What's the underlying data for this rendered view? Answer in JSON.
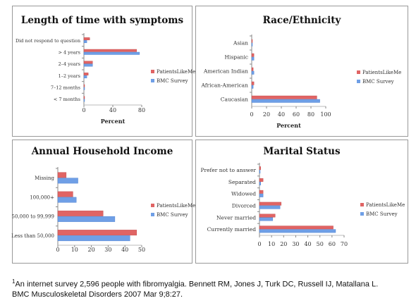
{
  "colors": {
    "PatientsLikeMe": "#e06464",
    "BMC Survey": "#6f9fe6"
  },
  "footnote": {
    "marker": "1",
    "line1": "An internet survey 2,596 people with fibromyalgia. Bennett RM, Jones J, Turk DC, Russell IJ, Matallana L.",
    "line2": "BMC Musculoskeletal Disorders 2007 Mar 9;8:27."
  },
  "chart_data": [
    {
      "type": "bar",
      "orientation": "horizontal",
      "title": "Length of time with symptoms",
      "xlabel": "Percent",
      "xlim": [
        0,
        80
      ],
      "xticks": [
        0,
        40,
        80
      ],
      "categories": [
        "Did not respond to question",
        "> 4 years",
        "2–4 years",
        "1–2 years",
        "7–12 months",
        "< 7 months"
      ],
      "series": [
        {
          "name": "PatientsLikeMe",
          "values": [
            8,
            73,
            12,
            6,
            1,
            0.5
          ]
        },
        {
          "name": "BMC Survey",
          "values": [
            4,
            77,
            12,
            4,
            1,
            0.5
          ]
        }
      ],
      "legend": "right"
    },
    {
      "type": "bar",
      "orientation": "horizontal",
      "title": "Race/Ethnicity",
      "xlabel": "Percent",
      "xlim": [
        0,
        100
      ],
      "xticks": [
        0,
        20,
        40,
        60,
        80,
        100
      ],
      "categories": [
        "Asian",
        "Hispanic",
        "American Indian",
        "African-American",
        "Caucasian"
      ],
      "series": [
        {
          "name": "PatientsLikeMe",
          "values": [
            0.5,
            3,
            2,
            3,
            88
          ]
        },
        {
          "name": "BMC Survey",
          "values": [
            0.5,
            3,
            3,
            2,
            92
          ]
        }
      ],
      "legend": "right"
    },
    {
      "type": "bar",
      "orientation": "horizontal",
      "title": "Annual Household Income",
      "xlabel": "",
      "xlim": [
        0,
        50
      ],
      "xticks": [
        0,
        10,
        20,
        30,
        40,
        50
      ],
      "categories": [
        "Missing",
        "100,000+",
        "50,000 to 99,999",
        "Less than 50,000"
      ],
      "series": [
        {
          "name": "PatientsLikeMe",
          "values": [
            5,
            9,
            27,
            47
          ]
        },
        {
          "name": "BMC Survey",
          "values": [
            12,
            11,
            34,
            43
          ]
        }
      ],
      "legend": "right"
    },
    {
      "type": "bar",
      "orientation": "horizontal",
      "title": "Marital Status",
      "xlabel": "",
      "xlim": [
        0,
        70
      ],
      "xticks": [
        0,
        10,
        20,
        30,
        40,
        50,
        60,
        70
      ],
      "categories": [
        "Prefer not to answer",
        "Separated",
        "Widowed",
        "Divorced",
        "Never married",
        "Currently married"
      ],
      "series": [
        {
          "name": "PatientsLikeMe",
          "values": [
            1,
            3,
            3,
            18,
            13,
            61
          ]
        },
        {
          "name": "BMC Survey",
          "values": [
            0.5,
            1,
            3,
            17,
            11,
            63
          ]
        }
      ],
      "legend": "right"
    }
  ]
}
